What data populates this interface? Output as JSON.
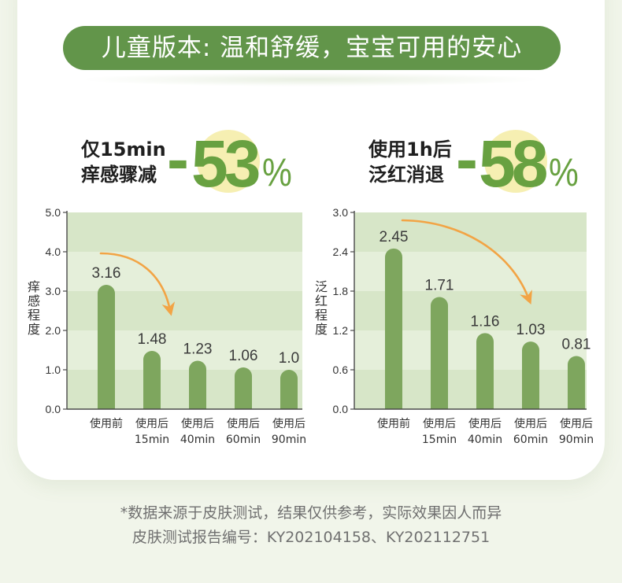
{
  "banner": {
    "title": "儿童版本: 温和舒缓，宝宝可用的安心"
  },
  "highlights": [
    {
      "line1": "仅15min",
      "line2": "痒感骤减",
      "sign": "-",
      "number": "53",
      "percent": "%"
    },
    {
      "line1": "使用1h后",
      "line2": "泛红消退",
      "sign": "-",
      "number": "58",
      "percent": "%"
    }
  ],
  "chart_data": [
    {
      "type": "bar",
      "ylabel": "痒感程度",
      "ylim": [
        0,
        5
      ],
      "yticks": [
        0,
        1,
        2,
        3,
        4,
        5
      ],
      "categories": [
        "使用前",
        "使用后 15min",
        "使用后 40min",
        "使用后 60min",
        "使用后 90min"
      ],
      "values": [
        3.16,
        1.48,
        1.23,
        1.06,
        1.0
      ],
      "value_labels": [
        "3.16",
        "1.48",
        "1.23",
        "1.06",
        "1.0"
      ],
      "grid": true
    },
    {
      "type": "bar",
      "ylabel": "泛红程度",
      "ylim": [
        0,
        3
      ],
      "yticks": [
        0,
        0.6,
        1.2,
        1.8,
        2.4,
        3.0
      ],
      "categories": [
        "使用前",
        "使用后 15min",
        "使用后 40min",
        "使用后 60min",
        "使用后 90min"
      ],
      "values": [
        2.45,
        1.71,
        1.16,
        1.03,
        0.81
      ],
      "value_labels": [
        "2.45",
        "1.71",
        "1.16",
        "1.03",
        "0.81"
      ],
      "grid": true
    }
  ],
  "footer": {
    "note": "*数据来源于皮肤测试，结果仅供参考，实际效果因人而异",
    "report": "皮肤测试报告编号：KY202104158、KY202112751"
  },
  "colors": {
    "page_bg": "#f1f5ea",
    "title_pill": "#62954a",
    "highlight_number": "#68a141",
    "highlight_circle": "#f6efb2",
    "bar": "#7ea65e",
    "band_dark": "#d7e6c8",
    "band_light": "#e5efda",
    "arrow": "#f2a445"
  }
}
